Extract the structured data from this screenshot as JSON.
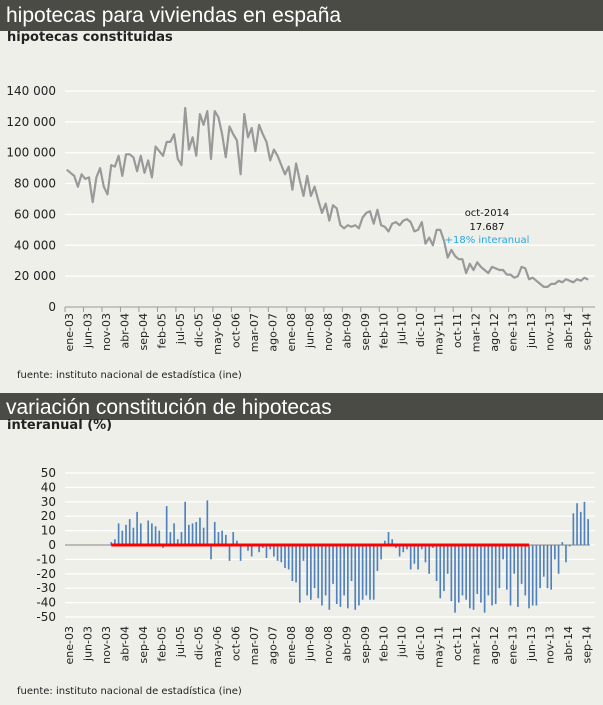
{
  "header1": "hipotecas para viviendas en españa",
  "header2": "variación constitución de hipotecas",
  "source": "fuente: instituto nacional de estadística (ine)",
  "chart_data": [
    {
      "type": "line",
      "title": "hipotecas constituidas",
      "xlabel": "",
      "ylabel": "",
      "ylim": [
        0,
        140000
      ],
      "yticks": [
        "0",
        "20 000",
        "40 000",
        "60 000",
        "80 000",
        "100 000",
        "120 000",
        "140 000"
      ],
      "xtick_labels": [
        "ene-03",
        "jun-03",
        "nov-03",
        "abr-04",
        "sep-04",
        "feb-05",
        "jul-05",
        "dic-05",
        "may-06",
        "oct-06",
        "mar-07",
        "ago-07",
        "ene-08",
        "jun-08",
        "nov-08",
        "abr-09",
        "sep-09",
        "feb-10",
        "jul-10",
        "dic-10",
        "may-11",
        "oct-11",
        "mar-12",
        "ago-12",
        "ene-13",
        "jun-13",
        "nov-13",
        "abr-14",
        "sep-14"
      ],
      "x_range": [
        "ene-03",
        "oct-14"
      ],
      "grid": true,
      "line_color": "#999999",
      "annotation": {
        "date": "oct-2014",
        "value": "17.687",
        "change": "+18% interanual",
        "change_color": "#29a8e0"
      },
      "values": [
        89000,
        87000,
        85000,
        78000,
        86000,
        83000,
        84000,
        68000,
        84000,
        90000,
        78000,
        73000,
        92000,
        91000,
        98000,
        85000,
        99000,
        99000,
        97000,
        88000,
        98000,
        87000,
        95000,
        84000,
        104000,
        101000,
        98000,
        107000,
        107000,
        112000,
        96000,
        92000,
        129000,
        102000,
        110000,
        98000,
        125000,
        118000,
        127000,
        96000,
        127000,
        123000,
        112000,
        97000,
        117000,
        112000,
        108000,
        86000,
        125000,
        110000,
        116000,
        101000,
        118000,
        112000,
        107000,
        95000,
        102000,
        98000,
        92000,
        86000,
        91000,
        76000,
        93000,
        82000,
        72000,
        85000,
        72000,
        78000,
        69000,
        61000,
        67000,
        56000,
        66000,
        64000,
        53000,
        51000,
        53000,
        52000,
        53000,
        51000,
        58000,
        61000,
        62000,
        54000,
        63000,
        53000,
        52000,
        49000,
        54000,
        55000,
        53000,
        56000,
        57000,
        55000,
        49000,
        50000,
        55000,
        41000,
        45000,
        40000,
        50000,
        50000,
        43000,
        32000,
        37000,
        33000,
        31000,
        31000,
        22000,
        28000,
        24000,
        29000,
        26000,
        24000,
        22000,
        26000,
        25000,
        24000,
        24000,
        21000,
        21000,
        19000,
        20000,
        26000,
        25000,
        18000,
        19000,
        17000,
        15000,
        13000,
        13000,
        15000,
        15000,
        17000,
        16000,
        18000,
        17000,
        16000,
        18000,
        17000,
        19000,
        17687
      ]
    },
    {
      "type": "bar",
      "title": "interanual (%)",
      "xlabel": "",
      "ylabel": "",
      "ylim": [
        -50,
        50
      ],
      "yticks": [
        "-50",
        "-40",
        "-30",
        "-20",
        "-10",
        "0",
        "10",
        "20",
        "30",
        "40",
        "50"
      ],
      "xtick_labels": [
        "ene-03",
        "jun-03",
        "nov-03",
        "abr-04",
        "sep-04",
        "feb-05",
        "jul-05",
        "dic-05",
        "may-06",
        "oct-06",
        "mar-07",
        "ago-07",
        "ene-08",
        "jun-08",
        "nov-08",
        "abr-09",
        "sep-09",
        "feb-10",
        "jul-10",
        "dic-10",
        "may-11",
        "oct-11",
        "mar-12",
        "ago-12",
        "ene-13",
        "jun-13",
        "nov-13",
        "abr-14",
        "sep-14"
      ],
      "grid": true,
      "bar_color": "#4f81bd",
      "reference_line_color": "#ff0000",
      "reference_line_range": [
        "ene-04",
        "jun-13"
      ],
      "values": [
        null,
        null,
        null,
        null,
        null,
        null,
        null,
        null,
        null,
        null,
        null,
        null,
        2,
        4,
        15,
        10,
        14,
        18,
        12,
        23,
        15,
        -1,
        17,
        15,
        13,
        10,
        -2,
        27,
        9,
        15,
        4,
        9,
        30,
        14,
        15,
        16,
        19,
        12,
        31,
        -10,
        16,
        9,
        10,
        7,
        -11,
        9,
        3,
        -11,
        0,
        -4,
        -8,
        0,
        -5,
        -2,
        -9,
        -3,
        -8,
        -11,
        -12,
        -16,
        -17,
        -25,
        -26,
        -40,
        -11,
        -35,
        -38,
        -30,
        -37,
        -42,
        -35,
        -45,
        -27,
        -41,
        -43,
        -35,
        -44,
        -25,
        -45,
        -42,
        -38,
        -35,
        -38,
        -38,
        -18,
        -10,
        3,
        9,
        4,
        -2,
        -8,
        -5,
        -3,
        -17,
        -13,
        -17,
        -3,
        -12,
        -20,
        -2,
        -25,
        -37,
        -32,
        -20,
        -39,
        -47,
        -40,
        -35,
        -38,
        -44,
        -45,
        -34,
        -40,
        -47,
        -35,
        -42,
        -41,
        -30,
        -10,
        -31,
        -42,
        -20,
        -43,
        -27,
        -35,
        -44,
        -42,
        -42,
        -30,
        -22,
        -30,
        -31,
        -10,
        -20,
        2,
        -12,
        -1,
        22,
        29,
        23,
        30,
        18
      ]
    }
  ]
}
